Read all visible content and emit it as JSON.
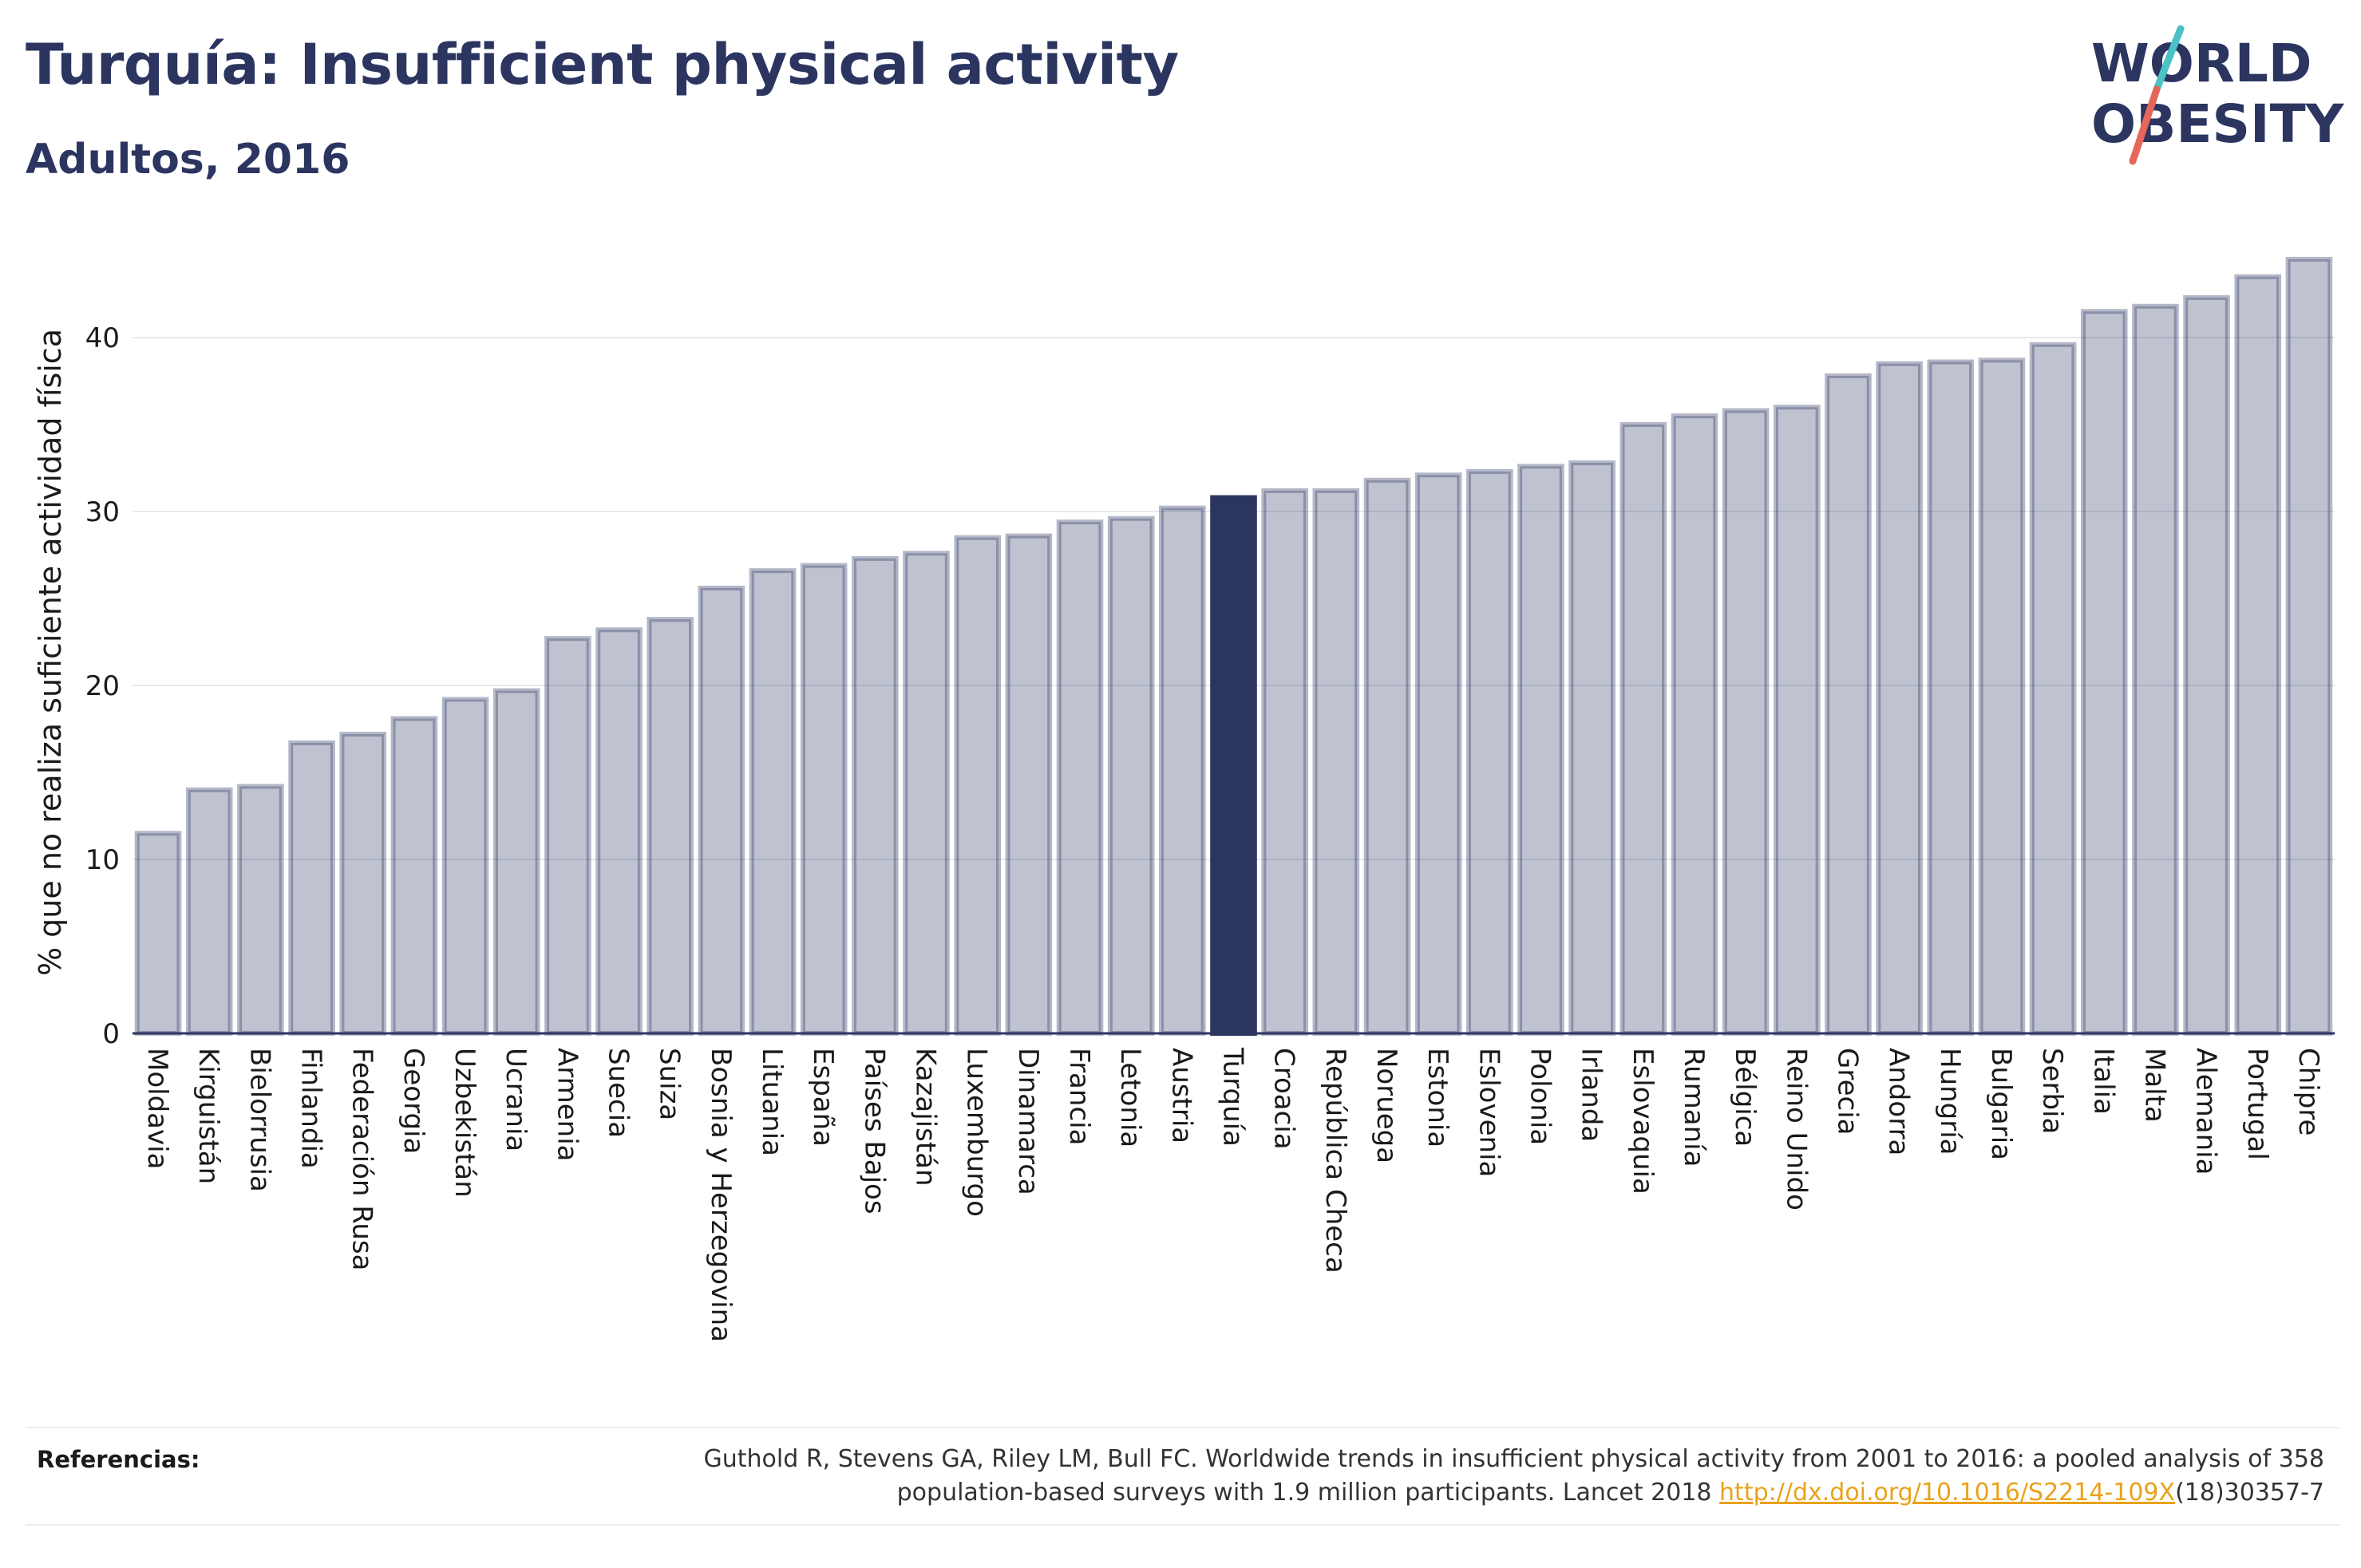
{
  "title": "Turquía: Insufficient physical activity",
  "subtitle": "Adultos, 2016",
  "logo": {
    "line1": "WORLD",
    "line2": "OBESITY",
    "slash_colors": [
      "#4bc2c5",
      "#e5665b"
    ]
  },
  "colors": {
    "bar": "#2b3560",
    "bar_fill_opacity": 0.3,
    "highlight": "#2b3560",
    "text": "#2b3560"
  },
  "chart_data": {
    "type": "bar",
    "title": "Turquía: Insufficient physical activity",
    "subtitle": "Adultos, 2016",
    "ylabel": "% que no realiza suficiente actividad física",
    "xlabel": "",
    "ylim": [
      0,
      45
    ],
    "yticks": [
      0,
      10,
      20,
      30,
      40
    ],
    "grid": true,
    "highlight": "Turquía",
    "categories": [
      "Moldavia",
      "Kirguistán",
      "Bielorrusia",
      "Finlandia",
      "Federación Rusa",
      "Georgia",
      "Uzbekistán",
      "Ucrania",
      "Armenia",
      "Suecia",
      "Suiza",
      "Bosnia y Herzegovina",
      "Lituania",
      "España",
      "Países Bajos",
      "Kazajistán",
      "Luxemburgo",
      "Dinamarca",
      "Francia",
      "Letonia",
      "Austria",
      "Turquía",
      "Croacia",
      "República Checa",
      "Noruega",
      "Estonia",
      "Eslovenia",
      "Polonia",
      "Irlanda",
      "Eslovaquia",
      "Rumanía",
      "Bélgica",
      "Reino Unido",
      "Grecia",
      "Andorra",
      "Hungría",
      "Bulgaria",
      "Serbia",
      "Italia",
      "Malta",
      "Alemania",
      "Portugal",
      "Chipre"
    ],
    "values": [
      11.5,
      14.0,
      14.2,
      16.7,
      17.2,
      18.1,
      19.2,
      19.7,
      22.7,
      23.2,
      23.8,
      25.6,
      26.6,
      26.9,
      27.3,
      27.6,
      28.5,
      28.6,
      29.4,
      29.6,
      30.2,
      30.8,
      31.2,
      31.2,
      31.8,
      32.1,
      32.3,
      32.6,
      32.8,
      35.0,
      35.5,
      35.8,
      36.0,
      37.8,
      38.5,
      38.6,
      38.7,
      39.6,
      41.5,
      41.8,
      42.3,
      43.5,
      44.5
    ]
  },
  "references": {
    "label": "Referencias:",
    "text_line1": "Guthold R, Stevens GA, Riley LM, Bull FC. Worldwide trends in insufficient physical activity from 2001 to 2016: a pooled analysis of 358",
    "text_line2_pre": "population-based surveys with 1.9 million participants. Lancet 2018 ",
    "link": "http://dx.doi.org/10.1016/S2214-109X",
    "text_line2_post": "(18)30357-7"
  }
}
